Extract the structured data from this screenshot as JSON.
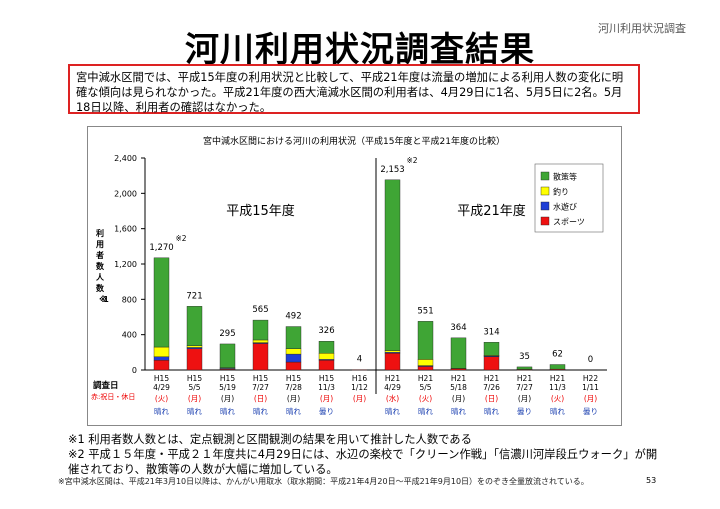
{
  "page": {
    "title": "河川利用状況調査結果",
    "corner_label": "河川利用状況調査",
    "summary": "宮中減水区間では、平成15年度の利用状況と比較して、平成21年度は流量の増加による利用人数の変化に明確な傾向は見られなかった。平成21年度の西大滝減水区間の利用者は、4月29日に1名、5月5日に2名。5月18日以降、利用者の確認はなかった。",
    "notes": [
      "※1 利用者数人数とは、定点観測と区間観測の結果を用いて推計した人数である",
      "※2 平成１５年度・平成２１年度共に4月29日には、水辺の楽校で「クリーン作戦」「信濃川河岸段丘ウォーク」が開催されており、散策等の人数が大幅に増加している。"
    ],
    "footnote": "※宮中減水区間は、平成21年3月10日以降は、かんがい用取水（取水期間：平成21年4月20日～平成21年9月10日）をのぞき全量放流されている。",
    "page_number": "53"
  },
  "colors": {
    "散策等": "#3fa535",
    "釣り": "#ffff00",
    "水遊び": "#1f3fd6",
    "スポーツ": "#ee1111",
    "frame": "#d22222"
  },
  "chart_data": {
    "type": "bar",
    "stacked": true,
    "title": "宮中減水区間における河川の利用状況（平成15年度と平成21年度の比較）",
    "ylabel": "利用者数人数※1",
    "ylim": [
      0,
      2400
    ],
    "yticks": [
      0,
      400,
      800,
      1200,
      1600,
      2000,
      2400
    ],
    "ytick_labels": [
      "0",
      "400",
      "800",
      "1,200",
      "1,600",
      "2,000",
      "2,400"
    ],
    "xlabel": "調査日",
    "xlabel_note": "赤:祝日・休日",
    "groups": [
      "平成15年度",
      "平成21年度"
    ],
    "categories": [
      {
        "code": "H15",
        "date": "4/29",
        "weekday": "(火)",
        "weather": "晴れ",
        "holiday": true
      },
      {
        "code": "H15",
        "date": "5/5",
        "weekday": "(月)",
        "weather": "晴れ",
        "holiday": true
      },
      {
        "code": "H15",
        "date": "5/19",
        "weekday": "(月)",
        "weather": "晴れ",
        "holiday": false
      },
      {
        "code": "H15",
        "date": "7/27",
        "weekday": "(日)",
        "weather": "晴れ",
        "holiday": true
      },
      {
        "code": "H15",
        "date": "7/28",
        "weekday": "(月)",
        "weather": "晴れ",
        "holiday": false
      },
      {
        "code": "H15",
        "date": "11/3",
        "weekday": "(月)",
        "weather": "曇り",
        "holiday": true
      },
      {
        "code": "H16",
        "date": "1/12",
        "weekday": "(月)",
        "weather": "",
        "holiday": true
      },
      {
        "code": "H21",
        "date": "4/29",
        "weekday": "(水)",
        "weather": "晴れ",
        "holiday": true
      },
      {
        "code": "H21",
        "date": "5/5",
        "weekday": "(火)",
        "weather": "晴れ",
        "holiday": true
      },
      {
        "code": "H21",
        "date": "5/18",
        "weekday": "(月)",
        "weather": "晴れ",
        "holiday": false
      },
      {
        "code": "H21",
        "date": "7/26",
        "weekday": "(日)",
        "weather": "晴れ",
        "holiday": true
      },
      {
        "code": "H21",
        "date": "7/27",
        "weekday": "(月)",
        "weather": "曇り",
        "holiday": false
      },
      {
        "code": "H21",
        "date": "11/3",
        "weekday": "(火)",
        "weather": "晴れ",
        "holiday": true
      },
      {
        "code": "H22",
        "date": "1/11",
        "weekday": "(月)",
        "weather": "曇り",
        "holiday": true
      }
    ],
    "totals": [
      1270,
      721,
      295,
      565,
      492,
      326,
      4,
      2153,
      551,
      364,
      314,
      35,
      62,
      0
    ],
    "total_labels": [
      "1,270",
      "721",
      "295",
      "565",
      "492",
      "326",
      "4",
      "2,153",
      "551",
      "364",
      "314",
      "35",
      "62",
      "0"
    ],
    "total_markers": [
      "※2",
      "",
      "",
      "",
      "",
      "",
      "",
      "※2",
      "",
      "",
      "",
      "",
      "",
      ""
    ],
    "series": [
      {
        "name": "スポーツ",
        "values": [
          110,
          240,
          10,
          300,
          90,
          110,
          4,
          190,
          40,
          15,
          150,
          5,
          10,
          0
        ]
      },
      {
        "name": "水遊び",
        "values": [
          40,
          15,
          10,
          10,
          90,
          10,
          0,
          10,
          10,
          0,
          10,
          0,
          0,
          0
        ]
      },
      {
        "name": "釣り",
        "values": [
          110,
          20,
          5,
          30,
          60,
          70,
          0,
          20,
          70,
          5,
          5,
          5,
          0,
          0
        ]
      },
      {
        "name": "散策等",
        "values": [
          1010,
          446,
          270,
          225,
          252,
          136,
          0,
          1933,
          431,
          344,
          149,
          25,
          52,
          0
        ]
      }
    ],
    "legend": [
      "散策等",
      "釣り",
      "水遊び",
      "スポーツ"
    ],
    "legend_position": "top-right"
  }
}
